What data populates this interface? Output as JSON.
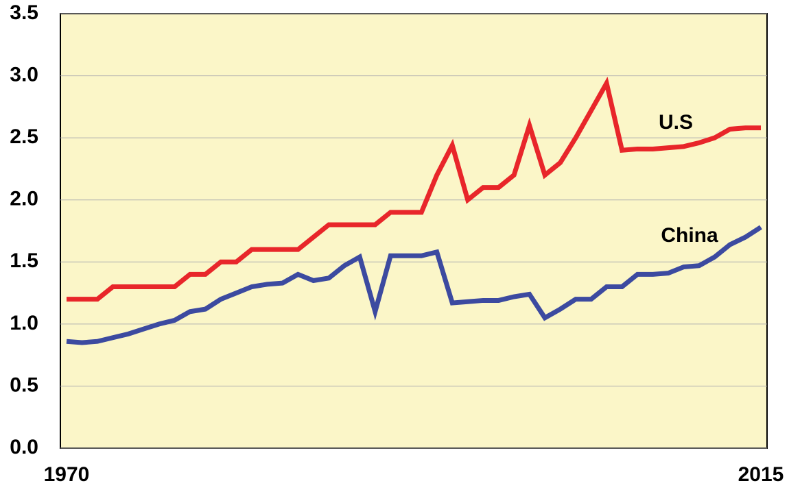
{
  "chart_data": {
    "type": "line",
    "x": [
      1970,
      1971,
      1972,
      1973,
      1974,
      1975,
      1976,
      1977,
      1978,
      1979,
      1980,
      1981,
      1982,
      1983,
      1984,
      1985,
      1986,
      1987,
      1988,
      1989,
      1990,
      1991,
      1992,
      1993,
      1994,
      1995,
      1996,
      1997,
      1998,
      1999,
      2000,
      2001,
      2002,
      2003,
      2004,
      2005,
      2006,
      2007,
      2008,
      2009,
      2010,
      2011,
      2012,
      2013,
      2014,
      2015
    ],
    "series": [
      {
        "name": "U.S",
        "color": "#e8262a",
        "values": [
          1.2,
          1.2,
          1.2,
          1.3,
          1.3,
          1.3,
          1.3,
          1.3,
          1.4,
          1.4,
          1.5,
          1.5,
          1.6,
          1.6,
          1.6,
          1.6,
          1.7,
          1.8,
          1.8,
          1.8,
          1.8,
          1.9,
          1.9,
          1.9,
          2.2,
          2.44,
          2.0,
          2.1,
          2.1,
          2.2,
          2.6,
          2.2,
          2.3,
          2.5,
          2.72,
          2.94,
          2.4,
          2.41,
          2.41,
          2.42,
          2.43,
          2.46,
          2.5,
          2.57,
          2.58,
          2.58
        ]
      },
      {
        "name": "China",
        "color": "#3c4aa0",
        "values": [
          0.86,
          0.85,
          0.86,
          0.89,
          0.92,
          0.96,
          1.0,
          1.03,
          1.1,
          1.12,
          1.2,
          1.25,
          1.3,
          1.32,
          1.33,
          1.4,
          1.35,
          1.37,
          1.47,
          1.54,
          1.1,
          1.55,
          1.55,
          1.55,
          1.58,
          1.17,
          1.18,
          1.19,
          1.19,
          1.22,
          1.24,
          1.05,
          1.12,
          1.2,
          1.2,
          1.3,
          1.3,
          1.4,
          1.4,
          1.41,
          1.46,
          1.47,
          1.54,
          1.64,
          1.7,
          1.78
        ]
      }
    ],
    "xlim": [
      1969.6,
      2015.4
    ],
    "xticks": [
      1970,
      2015
    ],
    "ylim": [
      0,
      3.5
    ],
    "yticks": [
      {
        "value": 0,
        "label": "0.0"
      },
      0.5,
      {
        "value": 1,
        "label": "1.0"
      },
      1.5,
      {
        "value": 2,
        "label": "2.0"
      },
      2.5,
      {
        "value": 3,
        "label": "3.0"
      },
      3.5
    ],
    "grid": true,
    "background": "#fbf6c8"
  }
}
